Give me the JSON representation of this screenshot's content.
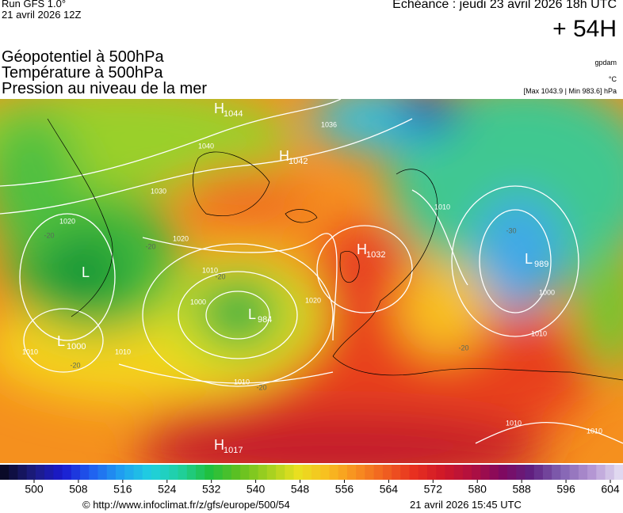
{
  "header": {
    "run": "Run GFS 1.0°",
    "run_date": "21 avril 2026 12Z",
    "forecast": "Echéance : jeudi 23 avril 2026 18h UTC",
    "lead": "+ 54H",
    "fields": [
      "Géopotentiel à 500hPa",
      "Température à 500hPa",
      "Pression au niveau de la mer"
    ],
    "unit_geopotential": "gpdam",
    "unit_temperature": "°C",
    "pressure_range": "[Max 1043.9 | Min 983.6] hPa"
  },
  "map": {
    "centers": [
      {
        "letter": "H",
        "value": "1044"
      },
      {
        "letter": "H",
        "value": "1042"
      },
      {
        "letter": "H",
        "value": "1032"
      },
      {
        "letter": "L",
        "value": "989"
      },
      {
        "letter": "L",
        "value": "984"
      },
      {
        "letter": "L",
        "value": "1000"
      },
      {
        "letter": "H",
        "value": "1017"
      },
      {
        "letter": "L",
        "value": null
      }
    ],
    "isobar_labels": [
      "1030",
      "1020",
      "1020",
      "1010",
      "1000",
      "1020",
      "1010",
      "1040",
      "1036",
      "1010",
      "1000",
      "1010",
      "1010",
      "1010",
      "1010",
      "1010"
    ],
    "temperature_labels": [
      "-20",
      "-20",
      "-20",
      "-20",
      "-30",
      "-20",
      "-20"
    ]
  },
  "colorbar": {
    "ticks": [
      500,
      508,
      516,
      524,
      532,
      540,
      548,
      556,
      564,
      572,
      580,
      588,
      596,
      604
    ],
    "colors": [
      "#0a0a28",
      "#1c1c80",
      "#1a1ad0",
      "#2060f0",
      "#20a0f0",
      "#20d0e0",
      "#20d0a0",
      "#20c040",
      "#60c020",
      "#a0d020",
      "#e8e020",
      "#f8c020",
      "#f89020",
      "#f06020",
      "#e83020",
      "#d01828",
      "#b01040",
      "#800860",
      "#602080",
      "#8060b0",
      "#b090d0",
      "#e0d8f0"
    ]
  },
  "footer": {
    "url": "© http://www.infoclimat.fr/z/gfs/europe/500/54",
    "date": "21 avril 2026 15:45 UTC"
  }
}
